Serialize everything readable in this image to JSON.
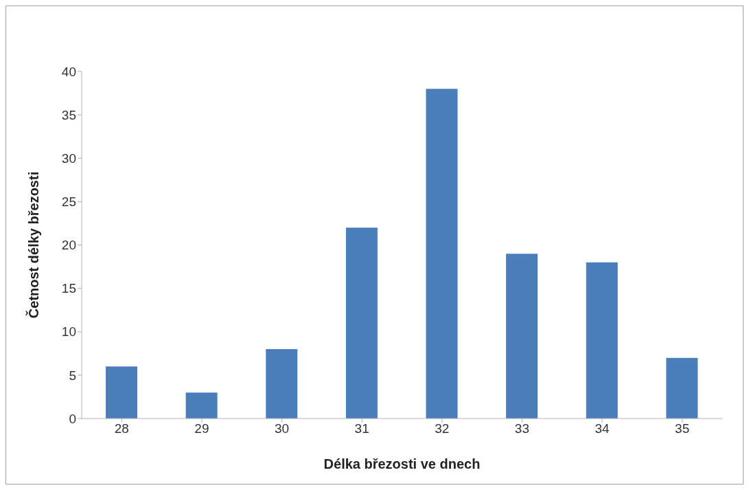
{
  "chart_data": {
    "type": "bar",
    "xlabel": "Délka březosti ve dnech",
    "ylabel": "Četnost délky březosti",
    "categories": [
      "28",
      "29",
      "30",
      "31",
      "32",
      "33",
      "34",
      "35"
    ],
    "values": [
      6,
      3,
      8,
      22,
      38,
      19,
      18,
      7
    ],
    "color": "#4a7ebb",
    "ylim": [
      0,
      40
    ],
    "yticks": [
      0,
      5,
      10,
      15,
      20,
      25,
      30,
      35,
      40
    ],
    "grid": false,
    "legend": false
  }
}
